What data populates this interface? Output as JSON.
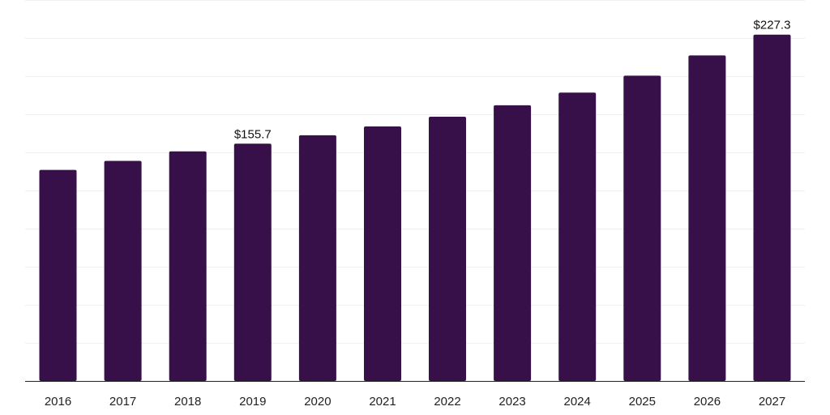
{
  "chart_data": {
    "type": "bar",
    "categories": [
      "2016",
      "2017",
      "2018",
      "2019",
      "2020",
      "2021",
      "2022",
      "2023",
      "2024",
      "2025",
      "2026",
      "2027"
    ],
    "values": [
      138.5,
      144.4,
      150.7,
      155.7,
      161.2,
      167.0,
      173.4,
      180.9,
      189.2,
      200.3,
      213.6,
      227.3
    ],
    "data_labels": [
      {
        "index": 3,
        "text": "$155.7"
      },
      {
        "index": 11,
        "text": "$227.3"
      }
    ],
    "ylim": [
      0,
      250
    ],
    "grid": true,
    "bar_color": "#37104a"
  }
}
